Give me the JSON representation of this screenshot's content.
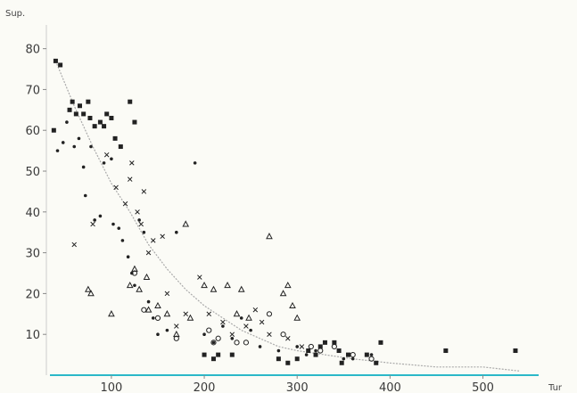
{
  "chart_data": {
    "type": "scatter",
    "title": "",
    "xlabel": "Tur",
    "ylabel": "Sup.",
    "xlim": [
      30,
      560
    ],
    "ylim": [
      0,
      88
    ],
    "x_ticks": [
      100,
      200,
      300,
      400,
      500
    ],
    "y_ticks": [
      10,
      20,
      30,
      40,
      50,
      60,
      70,
      80
    ],
    "grid": false,
    "legend": "none",
    "colors": {
      "background": "#fbfbf6",
      "points": "#222222",
      "fit": "#aaaaaa",
      "axis_x": "#2bb8c8",
      "axis_y": "#cccccc",
      "text": "#3a3a3a"
    },
    "series": [
      {
        "marker": "square",
        "points": [
          [
            40,
            77
          ],
          [
            45,
            76
          ],
          [
            38,
            60
          ],
          [
            55,
            65
          ],
          [
            58,
            67
          ],
          [
            62,
            64
          ],
          [
            66,
            66
          ],
          [
            70,
            64
          ],
          [
            75,
            67
          ],
          [
            77,
            63
          ],
          [
            82,
            61
          ],
          [
            88,
            62
          ],
          [
            92,
            61
          ],
          [
            95,
            64
          ],
          [
            100,
            63
          ],
          [
            104,
            58
          ],
          [
            110,
            56
          ],
          [
            120,
            67
          ],
          [
            125,
            62
          ],
          [
            200,
            5
          ],
          [
            210,
            4
          ],
          [
            215,
            5
          ],
          [
            230,
            5
          ],
          [
            280,
            4
          ],
          [
            290,
            3
          ],
          [
            300,
            4
          ],
          [
            312,
            6
          ],
          [
            320,
            5
          ],
          [
            325,
            7
          ],
          [
            330,
            8
          ],
          [
            340,
            8
          ],
          [
            345,
            6
          ],
          [
            348,
            3
          ],
          [
            355,
            5
          ],
          [
            375,
            5
          ],
          [
            385,
            3
          ],
          [
            390,
            8
          ],
          [
            460,
            6
          ],
          [
            535,
            6
          ]
        ]
      },
      {
        "marker": "dot",
        "points": [
          [
            42,
            55
          ],
          [
            48,
            57
          ],
          [
            52,
            62
          ],
          [
            60,
            56
          ],
          [
            65,
            58
          ],
          [
            70,
            51
          ],
          [
            72,
            44
          ],
          [
            78,
            56
          ],
          [
            82,
            38
          ],
          [
            88,
            39
          ],
          [
            92,
            52
          ],
          [
            100,
            53
          ],
          [
            102,
            37
          ],
          [
            108,
            36
          ],
          [
            112,
            33
          ],
          [
            118,
            29
          ],
          [
            122,
            25
          ],
          [
            125,
            22
          ],
          [
            130,
            38
          ],
          [
            135,
            35
          ],
          [
            140,
            18
          ],
          [
            145,
            14
          ],
          [
            150,
            10
          ],
          [
            160,
            11
          ],
          [
            170,
            35
          ],
          [
            190,
            52
          ],
          [
            200,
            10
          ],
          [
            210,
            8
          ],
          [
            220,
            12
          ],
          [
            230,
            9
          ],
          [
            240,
            14
          ],
          [
            250,
            11
          ],
          [
            260,
            7
          ],
          [
            280,
            6
          ],
          [
            300,
            7
          ],
          [
            310,
            5
          ],
          [
            320,
            6
          ],
          [
            350,
            4
          ],
          [
            360,
            4
          ],
          [
            380,
            5
          ]
        ]
      },
      {
        "marker": "triangle",
        "points": [
          [
            75,
            21
          ],
          [
            78,
            20
          ],
          [
            100,
            15
          ],
          [
            120,
            22
          ],
          [
            125,
            26
          ],
          [
            130,
            21
          ],
          [
            138,
            24
          ],
          [
            140,
            16
          ],
          [
            150,
            17
          ],
          [
            160,
            15
          ],
          [
            170,
            10
          ],
          [
            180,
            37
          ],
          [
            185,
            14
          ],
          [
            200,
            22
          ],
          [
            210,
            21
          ],
          [
            225,
            22
          ],
          [
            235,
            15
          ],
          [
            240,
            21
          ],
          [
            248,
            14
          ],
          [
            270,
            34
          ],
          [
            285,
            20
          ],
          [
            290,
            22
          ],
          [
            295,
            17
          ],
          [
            300,
            14
          ]
        ]
      },
      {
        "marker": "cross",
        "points": [
          [
            60,
            32
          ],
          [
            80,
            37
          ],
          [
            95,
            54
          ],
          [
            105,
            46
          ],
          [
            115,
            42
          ],
          [
            120,
            48
          ],
          [
            122,
            52
          ],
          [
            128,
            40
          ],
          [
            132,
            37
          ],
          [
            135,
            45
          ],
          [
            140,
            30
          ],
          [
            145,
            33
          ],
          [
            155,
            34
          ],
          [
            160,
            20
          ],
          [
            170,
            12
          ],
          [
            180,
            15
          ],
          [
            195,
            24
          ],
          [
            205,
            15
          ],
          [
            220,
            13
          ],
          [
            230,
            10
          ],
          [
            245,
            12
          ],
          [
            255,
            16
          ],
          [
            262,
            13
          ],
          [
            270,
            10
          ],
          [
            290,
            9
          ],
          [
            305,
            7
          ]
        ]
      },
      {
        "marker": "circle-open",
        "points": [
          [
            125,
            25
          ],
          [
            135,
            16
          ],
          [
            150,
            14
          ],
          [
            170,
            9
          ],
          [
            205,
            11
          ],
          [
            210,
            8
          ],
          [
            215,
            9
          ],
          [
            235,
            8
          ],
          [
            245,
            8
          ],
          [
            270,
            15
          ],
          [
            285,
            10
          ],
          [
            315,
            7
          ],
          [
            325,
            6
          ],
          [
            340,
            7
          ],
          [
            360,
            5
          ],
          [
            380,
            4
          ]
        ]
      }
    ],
    "fit": {
      "type": "curve",
      "points": [
        [
          40,
          77
        ],
        [
          60,
          66
        ],
        [
          80,
          56
        ],
        [
          100,
          47
        ],
        [
          120,
          40
        ],
        [
          140,
          32
        ],
        [
          160,
          26
        ],
        [
          180,
          21
        ],
        [
          200,
          17
        ],
        [
          220,
          14
        ],
        [
          240,
          11
        ],
        [
          260,
          9
        ],
        [
          280,
          7
        ],
        [
          300,
          6
        ],
        [
          330,
          5
        ],
        [
          360,
          4
        ],
        [
          400,
          3
        ],
        [
          450,
          2
        ],
        [
          500,
          2
        ],
        [
          540,
          1
        ]
      ]
    }
  }
}
